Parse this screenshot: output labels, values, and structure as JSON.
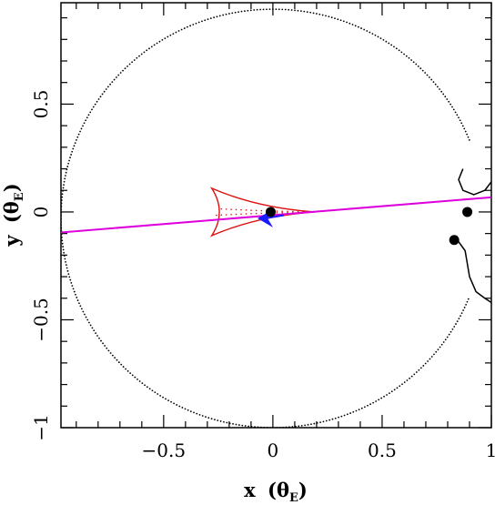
{
  "chart_data": {
    "type": "scatter",
    "title": "",
    "xlabel": {
      "main": "x",
      "unit_open": "(θ",
      "unit_sub": "E",
      "unit_close": ")"
    },
    "ylabel": {
      "main": "y",
      "unit_open": "(θ",
      "unit_sub": "E",
      "unit_close": ")"
    },
    "xlim": [
      -0.97,
      1.0
    ],
    "ylim": [
      -1.0,
      0.97
    ],
    "grid": false,
    "x_major_ticks": [
      {
        "value": -0.5,
        "label": "−0.5"
      },
      {
        "value": 0,
        "label": "0"
      },
      {
        "value": 0.5,
        "label": "0.5"
      },
      {
        "value": 1,
        "label": "1"
      }
    ],
    "y_major_ticks": [
      {
        "value": -1,
        "label": "−1"
      },
      {
        "value": -0.5,
        "label": "−0.5"
      },
      {
        "value": 0,
        "label": "0"
      },
      {
        "value": 0.5,
        "label": "0.5"
      }
    ],
    "minor_tick_step": 0.1,
    "colors": {
      "critical_curve": "#000000",
      "caustic": "#dd1111",
      "source_trajectory": "#dd00dd",
      "arrow": "#1a1aff",
      "lens": "#000000",
      "image_track": "#000000"
    },
    "critical_curve": {
      "style": "dotted",
      "center": [
        0.0,
        -0.03
      ],
      "radius": 0.97,
      "gap_angle_from_deg": -22,
      "gap_angle_to_deg": 22
    },
    "caustic": {
      "cusps": [
        [
          0.19,
          0.0
        ],
        [
          -0.28,
          0.11
        ],
        [
          -0.28,
          -0.11
        ]
      ],
      "inner_cusp_bulge": [
        -0.05,
        0.0
      ]
    },
    "source_trajectory": {
      "points": [
        [
          -0.97,
          -0.095
        ],
        [
          1.0,
          0.068
        ]
      ]
    },
    "arrow": {
      "tip": [
        -0.07,
        -0.03
      ],
      "tail": [
        0.05,
        -0.015
      ]
    },
    "lenses": [
      {
        "x": -0.01,
        "y": 0.0
      },
      {
        "x": 0.89,
        "y": 0.0
      },
      {
        "x": 0.83,
        "y": -0.13
      }
    ],
    "image_tracks": [
      {
        "points": [
          [
            0.87,
            0.2
          ],
          [
            0.85,
            0.15
          ],
          [
            0.87,
            0.1
          ],
          [
            0.92,
            0.08
          ],
          [
            0.97,
            0.1
          ],
          [
            1.0,
            0.14
          ]
        ]
      },
      {
        "points": [
          [
            0.83,
            -0.11
          ],
          [
            0.88,
            -0.18
          ],
          [
            0.9,
            -0.3
          ],
          [
            0.93,
            -0.37
          ],
          [
            0.97,
            -0.4
          ],
          [
            1.0,
            -0.42
          ]
        ]
      }
    ]
  }
}
